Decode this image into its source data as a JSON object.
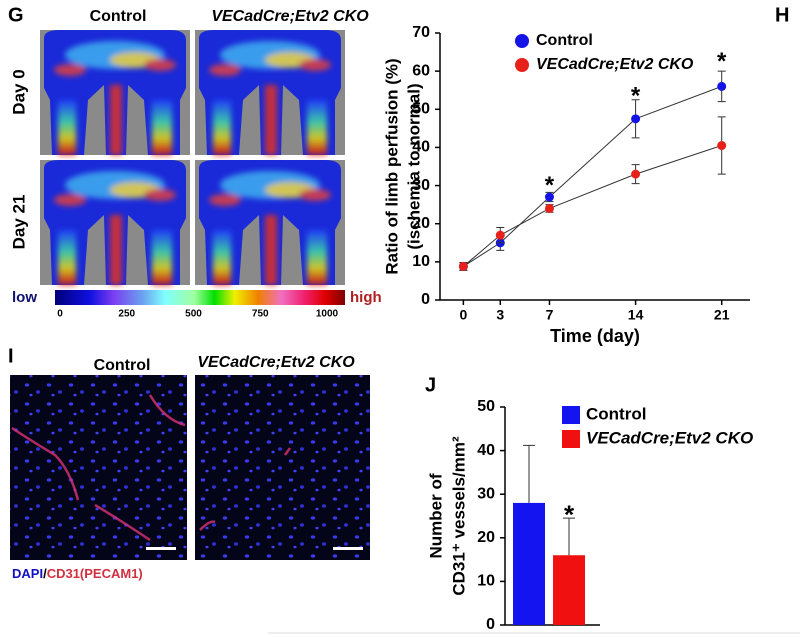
{
  "figure": {
    "panel_g": {
      "letter": "G",
      "columns": [
        "Control",
        "VECadCre;Etv2 CKO"
      ],
      "rows": [
        "Day 0",
        "Day 21"
      ],
      "colorbar": {
        "low": "low",
        "high": "high",
        "lim": [
          0,
          1000
        ],
        "ticks": [
          0,
          250,
          500,
          750,
          1000
        ]
      }
    },
    "panel_i": {
      "letter": "I",
      "columns": [
        "Control",
        "VECadCre;Etv2 CKO"
      ],
      "stain": [
        "DAPI",
        "/",
        "CD31(PECAM1)"
      ]
    }
  },
  "chart_data": [
    {
      "type": "line",
      "label": "H",
      "x": [
        0,
        3,
        7,
        14,
        21
      ],
      "xlim": [
        -1.9,
        23.3
      ],
      "xticks": [
        0,
        3,
        7,
        14,
        21
      ],
      "ylim": [
        0,
        70
      ],
      "yticks": [
        0,
        10,
        20,
        30,
        40,
        50,
        60,
        70
      ],
      "xlabel": "Time (day)",
      "ylabel": [
        "Ratio of limb perfusion (%)",
        "(ischemia to normal)"
      ],
      "legend": "upper left",
      "series": [
        {
          "name": "Control",
          "color": "#1414e6",
          "values": [
            8.8,
            15,
            27,
            47.5,
            56
          ],
          "errors": [
            1,
            2,
            1.2,
            5,
            4
          ]
        },
        {
          "name": "VECadCre;Etv2 CKO",
          "color": "#e8201a",
          "values": [
            8.8,
            17,
            24,
            33,
            40.5
          ],
          "errors": [
            1,
            2,
            1,
            2.5,
            7.5
          ]
        }
      ],
      "annotations": [
        {
          "text": "*",
          "x": 7,
          "y": 31
        },
        {
          "text": "*",
          "x": 14,
          "y": 54.5
        },
        {
          "text": "*",
          "x": 21,
          "y": 63.5
        }
      ]
    },
    {
      "type": "bar",
      "label": "J",
      "categories": [
        null
      ],
      "ylim": [
        0,
        50
      ],
      "yticks": [
        0,
        10,
        20,
        30,
        40,
        50
      ],
      "ylabel": [
        "Number of",
        "CD31⁺ vessels/mm²"
      ],
      "legend": "upper right",
      "series": [
        {
          "name": "Control",
          "color": "#1414f0",
          "values": [
            28
          ],
          "errors": [
            13.2
          ]
        },
        {
          "name": "VECadCre;Etv2 CKO",
          "color": "#f01010",
          "values": [
            16
          ],
          "errors": [
            8.5
          ]
        }
      ],
      "annotations": [
        {
          "text": "*",
          "series": 1,
          "y": 26
        }
      ]
    }
  ]
}
